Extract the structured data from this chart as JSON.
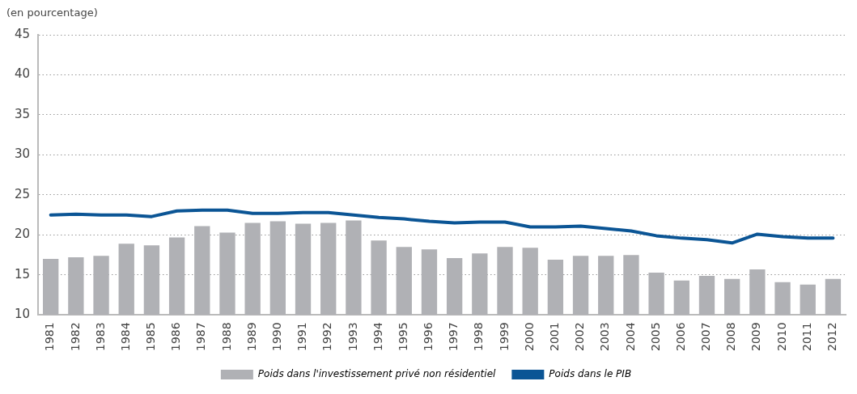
{
  "chart_data": {
    "type": "bar",
    "subtitle": "(en pourcentage)",
    "categories": [
      "1981",
      "1982",
      "1983",
      "1984",
      "1985",
      "1986",
      "1987",
      "1988",
      "1989",
      "1990",
      "1991",
      "1992",
      "1993",
      "1994",
      "1995",
      "1996",
      "1997",
      "1998",
      "1999",
      "2000",
      "2001",
      "2002",
      "2003",
      "2004",
      "2005",
      "2006",
      "2007",
      "2008",
      "2009",
      "2010",
      "2011",
      "2012"
    ],
    "series": [
      {
        "name": "Poids dans l'investissement privé non résidentiel",
        "color": "#b0b1b5",
        "values": [
          17.0,
          17.2,
          17.4,
          18.9,
          18.7,
          19.7,
          21.1,
          20.3,
          21.5,
          21.7,
          21.4,
          21.5,
          21.8,
          19.3,
          18.5,
          18.2,
          17.1,
          17.7,
          18.5,
          18.4,
          16.9,
          17.4,
          17.4,
          17.5,
          15.3,
          14.3,
          14.9,
          14.5,
          15.7,
          14.1,
          13.8,
          14.5
        ]
      },
      {
        "name": "Poids dans le PIB",
        "type": "line",
        "color": "#0b5595",
        "values": [
          22.5,
          22.6,
          22.5,
          22.5,
          22.3,
          23.0,
          23.1,
          23.1,
          22.7,
          22.7,
          22.8,
          22.8,
          22.5,
          22.2,
          22.0,
          21.7,
          21.5,
          21.6,
          21.6,
          21.0,
          21.0,
          21.1,
          20.8,
          20.5,
          19.9,
          19.6,
          19.4,
          19.0,
          20.1,
          19.8,
          19.6,
          19.6
        ]
      }
    ],
    "ylim": [
      10,
      45
    ],
    "yticks": [
      10,
      15,
      20,
      25,
      30,
      35,
      40,
      45
    ],
    "grid": "y",
    "legend": "bottom",
    "marker": "none"
  }
}
